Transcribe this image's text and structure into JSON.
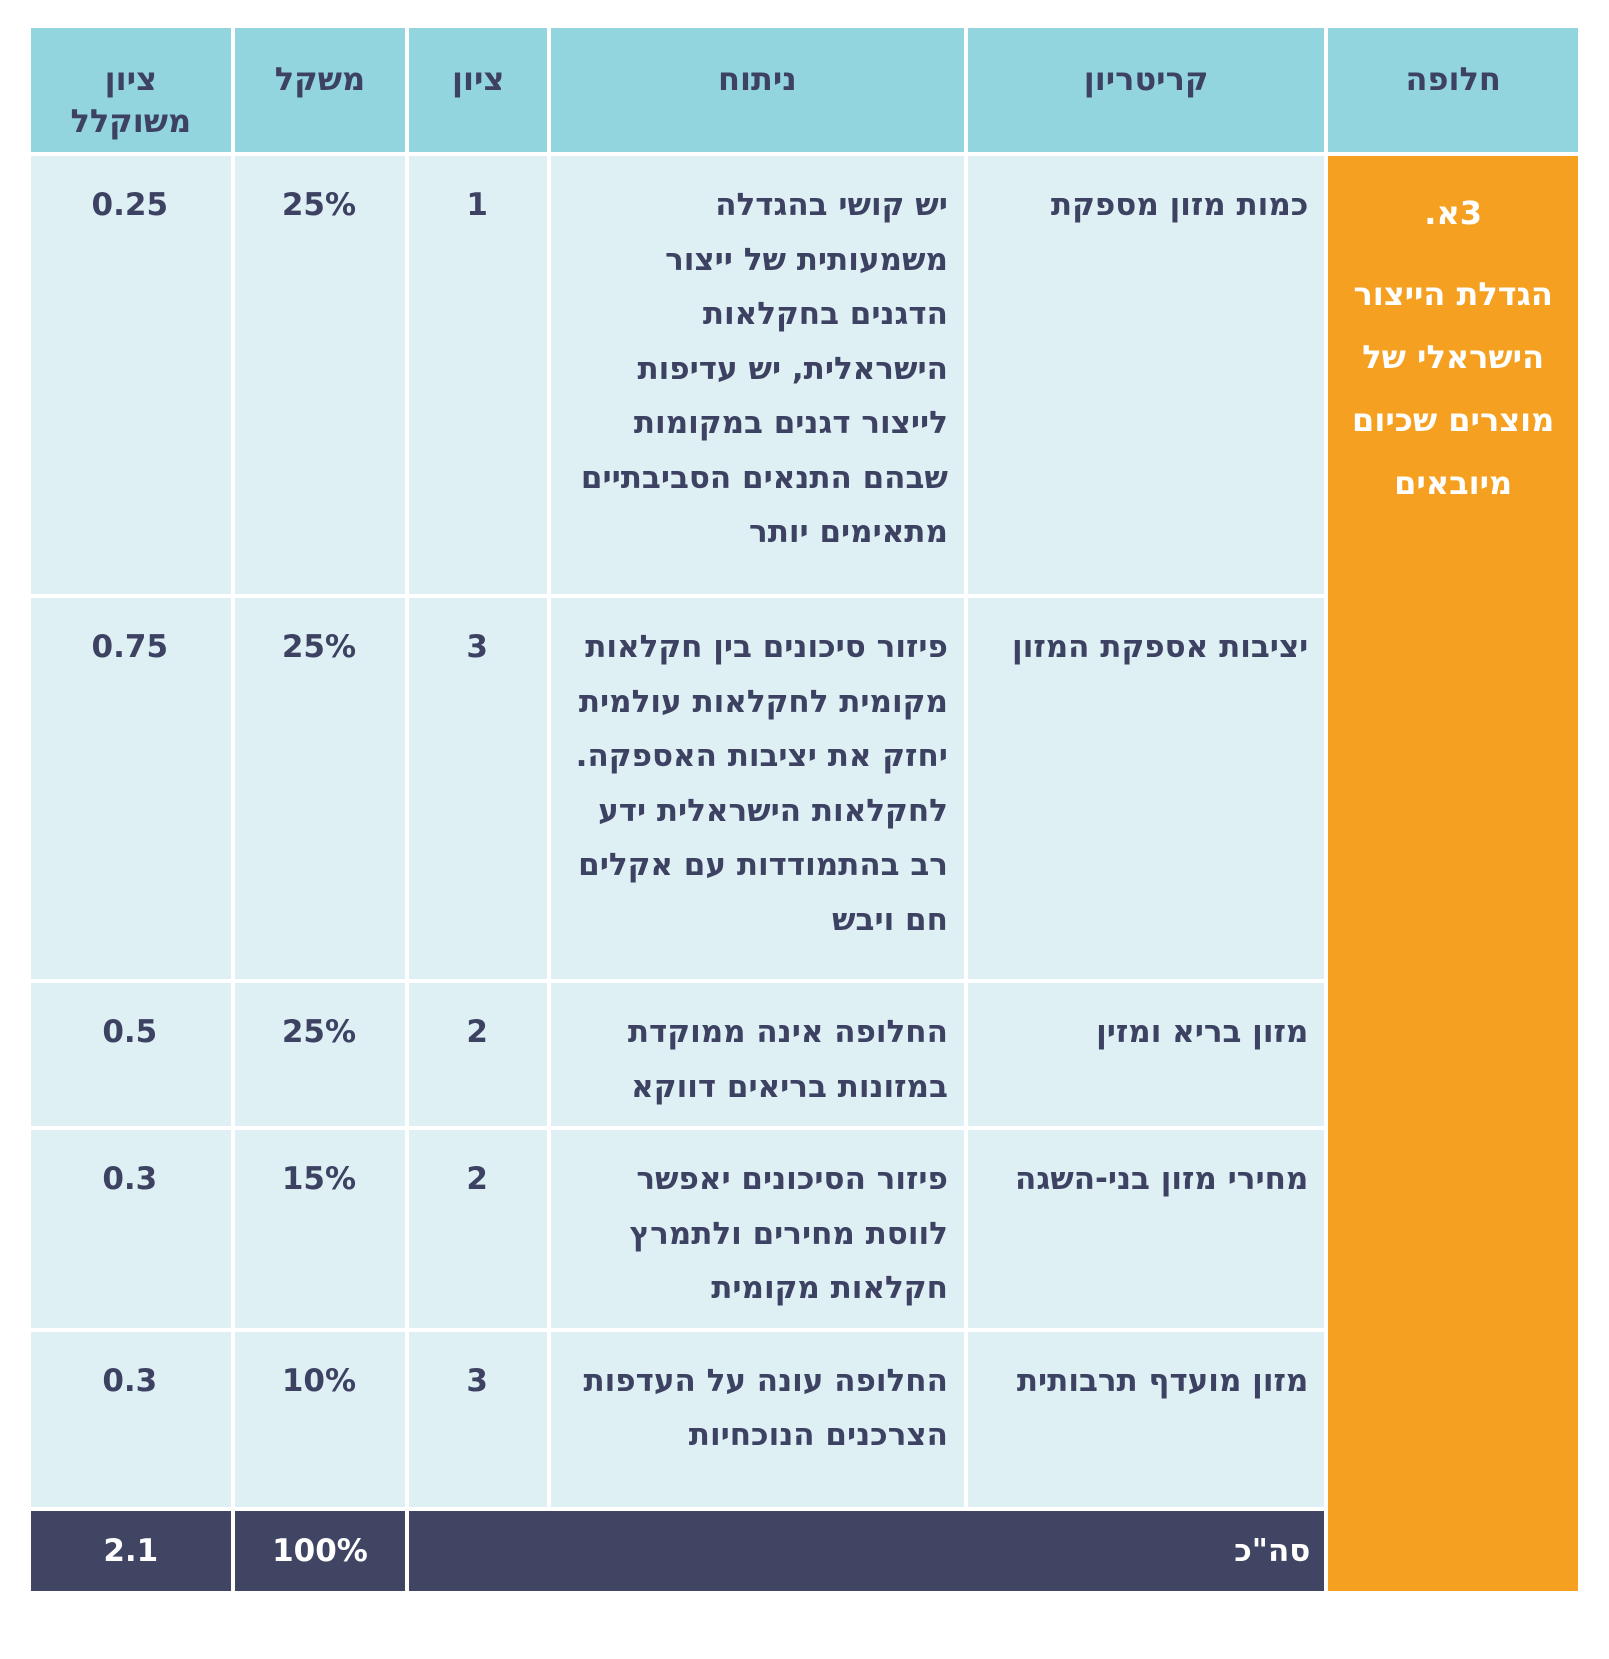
{
  "headers": {
    "alternative": "חלופה",
    "criterion": "קריטריון",
    "analysis": "ניתוח",
    "score": "ציון",
    "weight": "משקל",
    "weighted_score": "ציון משוקלל"
  },
  "alternative": {
    "code": "3א.",
    "title": "הגדלת הייצור הישראלי של מוצרים שכיום מיובאים"
  },
  "rows": [
    {
      "criterion": "כמות מזון מספקת",
      "analysis": "יש קושי בהגדלה משמעותית של ייצור הדגנים בחקלאות הישראלית, יש עדיפות לייצור דגנים במקומות שבהם התנאים הסביבתיים מתאימים יותר",
      "score": "1",
      "weight": "25%",
      "weighted": "0.25"
    },
    {
      "criterion": "יציבות אספקת המזון",
      "analysis": "פיזור סיכונים בין חקלאות מקומית לחקלאות עולמית יחזק את יציבות האספקה. לחקלאות הישראלית ידע רב בהתמודדות עם אקלים חם ויבש",
      "score": "3",
      "weight": "25%",
      "weighted": "0.75"
    },
    {
      "criterion": "מזון בריא ומזין",
      "analysis": "החלופה אינה ממוקדת במזונות בריאים דווקא",
      "score": "2",
      "weight": "25%",
      "weighted": "0.5"
    },
    {
      "criterion": "מחירי מזון בני-השגה",
      "analysis": "פיזור הסיכונים יאפשר לווסת מחירים ולתמרץ חקלאות מקומית",
      "score": "2",
      "weight": "15%",
      "weighted": "0.3"
    },
    {
      "criterion": "מזון מועדף תרבותית",
      "analysis": "החלופה עונה על העדפות הצרכנים הנוכחיות",
      "score": "3",
      "weight": "10%",
      "weighted": "0.3"
    }
  ],
  "total": {
    "label": "סה\"כ",
    "weight": "100%",
    "weighted": "2.1"
  },
  "colors": {
    "header_bg": "#93d5de",
    "cell_bg": "#dff0f4",
    "alternative_bg": "#f6a021",
    "total_bg": "#404563",
    "text": "#3d4263"
  }
}
